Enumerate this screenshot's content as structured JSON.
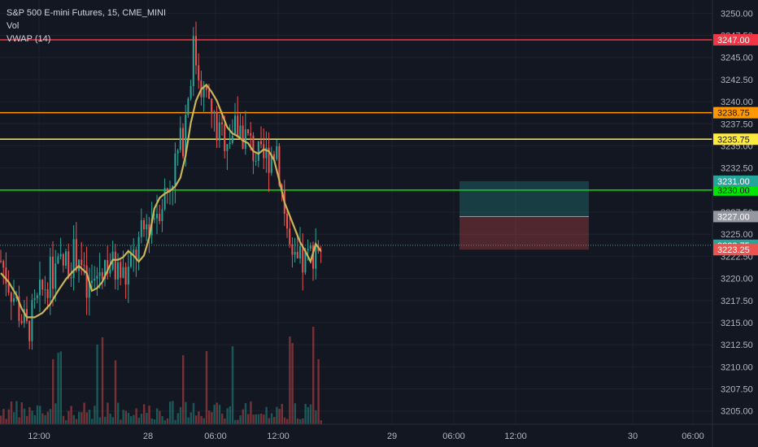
{
  "legend": {
    "title": "S&P 500 E-mini Futures, 15, CME_MINI",
    "volume": "Vol",
    "vwap": "VWAP (14)"
  },
  "chart_data": {
    "type": "candlestick",
    "symbol": "S&P 500 E-mini Futures",
    "interval": "15",
    "exchange": "CME_MINI",
    "y_axis": {
      "range": [
        3203.5,
        3251.5
      ],
      "ticks": [
        3205.0,
        3207.5,
        3210.0,
        3212.5,
        3215.0,
        3217.5,
        3220.0,
        3222.5,
        3225.0,
        3227.5,
        3230.0,
        3232.5,
        3235.0,
        3237.5,
        3240.0,
        3242.5,
        3245.0,
        3247.5,
        3250.0
      ]
    },
    "x_axis": {
      "ticks": [
        "12:00",
        "28",
        "06:00",
        "12:00",
        "29",
        "06:00",
        "12:00",
        "30",
        "06:00"
      ]
    },
    "grid": true,
    "horizontal_lines": [
      {
        "price": 3247.0,
        "label": "3247.00",
        "color": "#f23645"
      },
      {
        "price": 3238.75,
        "label": "3238.75",
        "color": "#ff9800"
      },
      {
        "price": 3235.75,
        "label": "3235.75",
        "color": "#ffeb3b"
      },
      {
        "price": 3230.0,
        "label": "3230.00",
        "color": "#00e600"
      }
    ],
    "price_tags": [
      {
        "price": 3231.0,
        "label": "3231.00",
        "color": "#26a69a"
      },
      {
        "price": 3227.0,
        "label": "3227.00",
        "color": "#9598a1"
      },
      {
        "price": 3223.75,
        "label": "3223.75",
        "color": "#26a69a"
      },
      {
        "price": 3223.25,
        "label": "3223.25",
        "color": "#ef5350"
      }
    ],
    "last_price": 3223.75,
    "position_box": {
      "entry": 3227.0,
      "target": 3231.0,
      "stop": 3223.25
    },
    "colors": {
      "up": "#26a69a",
      "down": "#ef5350",
      "vwap": "#c9b458",
      "background": "#131722",
      "grid": "#1e222d"
    },
    "vwap_points": [
      [
        0,
        3220.6
      ],
      [
        3,
        3219.6
      ],
      [
        6,
        3218.1
      ],
      [
        8,
        3216.6
      ],
      [
        10,
        3215.6
      ],
      [
        13,
        3215.6
      ],
      [
        16,
        3216.1
      ],
      [
        19,
        3217.1
      ],
      [
        22,
        3218.6
      ],
      [
        25,
        3219.9
      ],
      [
        28,
        3220.9
      ],
      [
        30,
        3221.4
      ],
      [
        33,
        3220.6
      ],
      [
        35,
        3218.6
      ],
      [
        37,
        3218.9
      ],
      [
        39,
        3219.6
      ],
      [
        41,
        3220.9
      ],
      [
        43,
        3222.1
      ],
      [
        45,
        3222.1
      ],
      [
        47,
        3222.4
      ],
      [
        49,
        3223.1
      ],
      [
        51,
        3222.6
      ],
      [
        53,
        3221.9
      ],
      [
        55,
        3222.6
      ],
      [
        57,
        3224.6
      ],
      [
        59,
        3227.9
      ],
      [
        61,
        3229.1
      ],
      [
        63,
        3229.6
      ],
      [
        65,
        3229.9
      ],
      [
        67,
        3230.4
      ],
      [
        69,
        3231.4
      ],
      [
        71,
        3233.9
      ],
      [
        73,
        3237.6
      ],
      [
        75,
        3240.1
      ],
      [
        77,
        3241.4
      ],
      [
        79,
        3241.9
      ],
      [
        81,
        3241.1
      ],
      [
        83,
        3240.1
      ],
      [
        85,
        3238.6
      ],
      [
        87,
        3237.1
      ],
      [
        89,
        3236.4
      ],
      [
        91,
        3236.1
      ],
      [
        93,
        3235.6
      ],
      [
        95,
        3235.3
      ],
      [
        97,
        3234.4
      ],
      [
        99,
        3234.1
      ],
      [
        101,
        3234.6
      ],
      [
        103,
        3234.4
      ],
      [
        105,
        3233.4
      ],
      [
        107,
        3231.1
      ],
      [
        109,
        3228.6
      ],
      [
        111,
        3227.1
      ],
      [
        113,
        3225.6
      ],
      [
        115,
        3224.1
      ],
      [
        117,
        3223.1
      ],
      [
        119,
        3221.9
      ],
      [
        121,
        3223.9
      ],
      [
        123,
        3223.1
      ]
    ]
  }
}
